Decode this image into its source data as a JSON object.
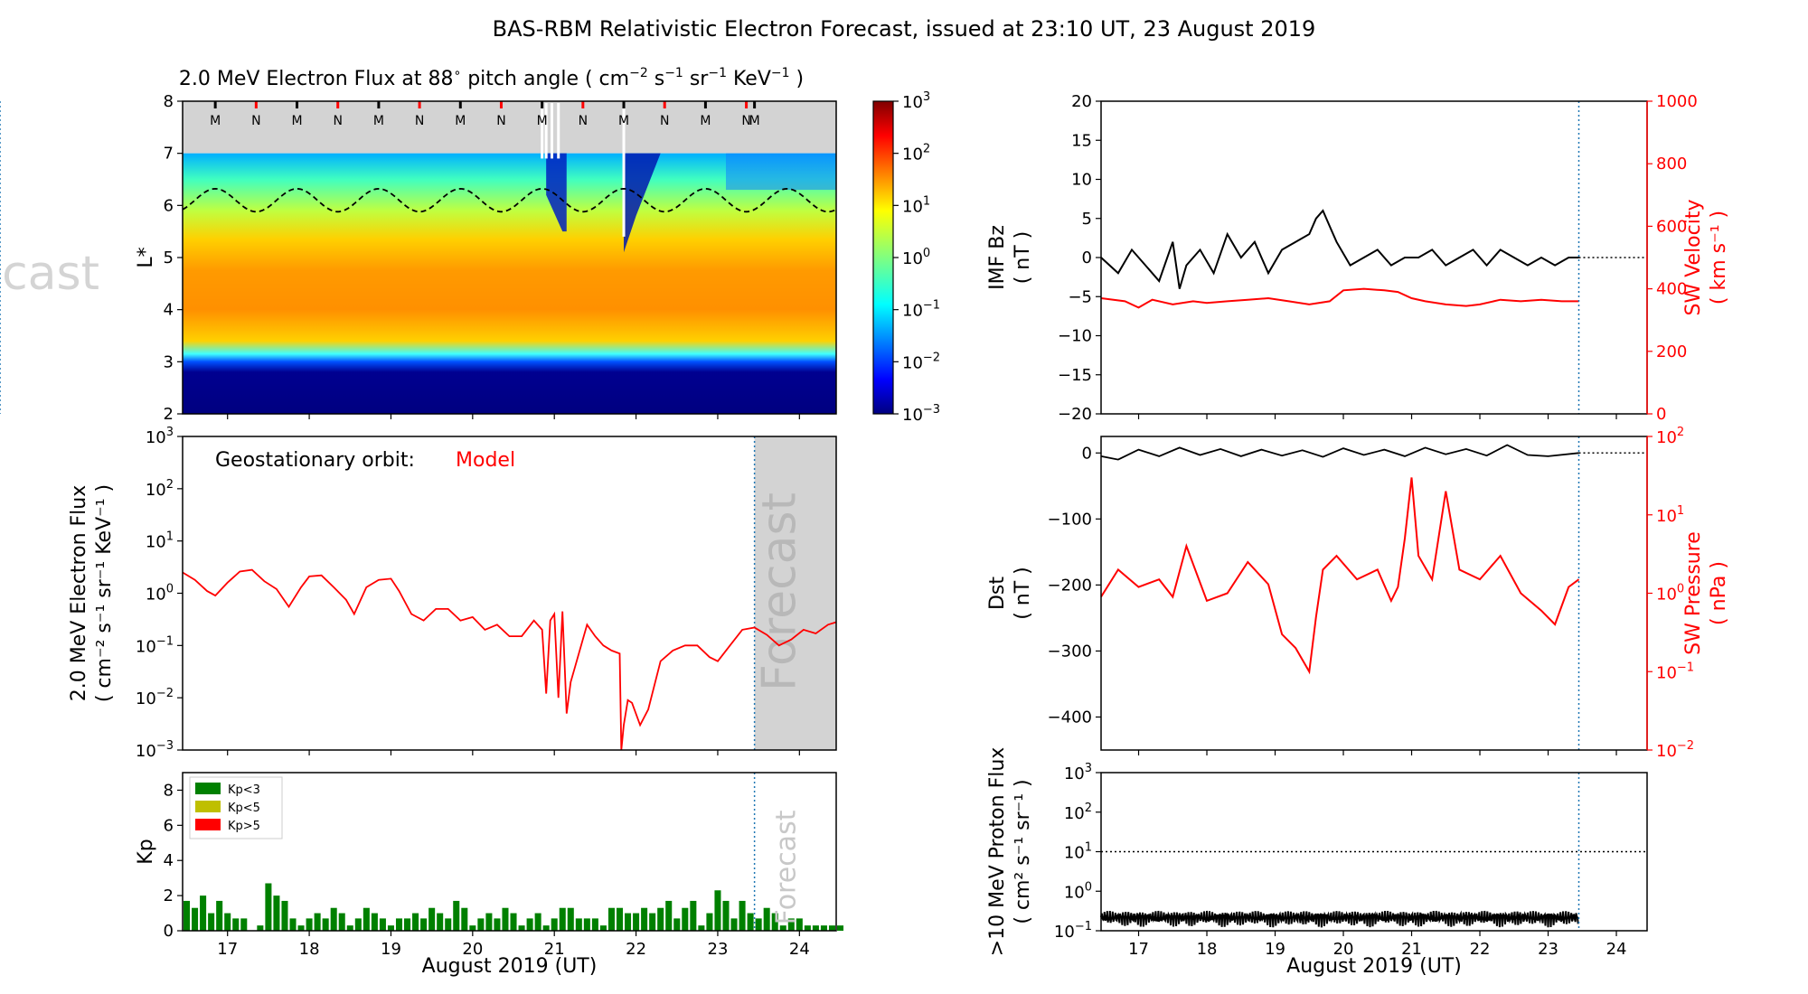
{
  "title": "BAS-RBM Relativistic Electron Forecast, issued at 23:10 UT, 23 August 2019",
  "colors": {
    "model": "#ff0000",
    "kp_low": "#008000",
    "kp_mid": "#bfbf00",
    "kp_high": "#ff0000",
    "forecast_line": "#1f77b4",
    "forecast_fill": "#d3d3d3"
  },
  "chart_data": [
    {
      "id": "flux_map",
      "type": "heatmap",
      "title": "2.0 MeV Electron Flux at 88$^\\circ$ pitch angle ( cm$^{-2}$ s$^{-1}$ sr$^{-1}$ KeV$^{-1}$ )",
      "title_parts": [
        "2.0 MeV Electron Flux at 88",
        "∘",
        " pitch angle ( cm",
        "−2",
        " s",
        "−1",
        " sr",
        "−1",
        " KeV",
        "−1",
        " )"
      ],
      "ylabel": "L*",
      "xlim": [
        16.45,
        24.45
      ],
      "ylim": [
        2,
        8
      ],
      "yticks": [
        "2",
        "3",
        "4",
        "5",
        "6",
        "7",
        "8"
      ],
      "colorbar": {
        "scale": "log",
        "range": [
          0.001,
          1000
        ],
        "ticks": [
          {
            "b": "10",
            "e": "−3"
          },
          {
            "b": "10",
            "e": "−2"
          },
          {
            "b": "10",
            "e": "−1"
          },
          {
            "b": "10",
            "e": "0"
          },
          {
            "b": "10",
            "e": "1"
          },
          {
            "b": "10",
            "e": "2"
          },
          {
            "b": "10",
            "e": "3"
          }
        ]
      },
      "markers": [
        {
          "x": 16.85,
          "label": "M"
        },
        {
          "x": 17.35,
          "label": "N"
        },
        {
          "x": 17.85,
          "label": "M"
        },
        {
          "x": 18.35,
          "label": "N"
        },
        {
          "x": 18.85,
          "label": "M"
        },
        {
          "x": 19.35,
          "label": "N"
        },
        {
          "x": 19.85,
          "label": "M"
        },
        {
          "x": 20.35,
          "label": "N"
        },
        {
          "x": 20.85,
          "label": "M"
        },
        {
          "x": 21.35,
          "label": "N"
        },
        {
          "x": 21.85,
          "label": "M"
        },
        {
          "x": 22.35,
          "label": "N"
        },
        {
          "x": 22.85,
          "label": "M"
        },
        {
          "x": 23.35,
          "label": "N"
        },
        {
          "x": 23.45,
          "label": "M"
        }
      ],
      "last_closed_drift_shell": {
        "mean": 6.1,
        "amplitude": 0.22,
        "period_days": 1
      },
      "forecast_label": "Forecast"
    },
    {
      "id": "geo_flux",
      "type": "line",
      "ylabel_lines": [
        "2.0 MeV Electron Flux",
        "( cm⁻² s⁻¹ sr⁻¹ KeV⁻¹ )"
      ],
      "annotation": "Geostationary orbit:",
      "series": [
        {
          "name": "Model",
          "color": "#ff0000",
          "x": [
            16.45,
            16.6,
            16.75,
            16.85,
            17.0,
            17.15,
            17.3,
            17.45,
            17.6,
            17.75,
            17.9,
            18.0,
            18.15,
            18.3,
            18.45,
            18.55,
            18.7,
            18.85,
            19.0,
            19.1,
            19.25,
            19.4,
            19.55,
            19.7,
            19.85,
            20.0,
            20.15,
            20.3,
            20.45,
            20.6,
            20.75,
            20.85,
            20.9,
            20.95,
            21.0,
            21.05,
            21.1,
            21.15,
            21.2,
            21.3,
            21.4,
            21.5,
            21.6,
            21.7,
            21.8,
            21.82,
            21.85,
            21.9,
            21.95,
            22.05,
            22.15,
            22.3,
            22.45,
            22.6,
            22.75,
            22.9,
            23.0,
            23.15,
            23.3,
            23.45,
            23.6,
            23.75,
            23.9,
            24.05,
            24.2,
            24.35,
            24.45
          ],
          "y": [
            2.5,
            1.8,
            1.1,
            0.9,
            1.6,
            2.6,
            2.8,
            1.7,
            1.2,
            0.55,
            1.3,
            2.1,
            2.2,
            1.3,
            0.75,
            0.4,
            1.3,
            1.8,
            1.9,
            1.1,
            0.4,
            0.3,
            0.5,
            0.5,
            0.3,
            0.35,
            0.2,
            0.25,
            0.15,
            0.15,
            0.3,
            0.2,
            0.012,
            0.3,
            0.4,
            0.01,
            0.45,
            0.005,
            0.02,
            0.07,
            0.25,
            0.15,
            0.1,
            0.08,
            0.07,
            0.001,
            0.003,
            0.009,
            0.008,
            0.003,
            0.006,
            0.05,
            0.08,
            0.1,
            0.1,
            0.06,
            0.05,
            0.1,
            0.2,
            0.22,
            0.16,
            0.1,
            0.13,
            0.2,
            0.17,
            0.25,
            0.28
          ]
        }
      ],
      "xlim": [
        16.45,
        24.45
      ],
      "ylim": [
        0.001,
        1000
      ],
      "yscale": "log",
      "yticks": [
        {
          "b": "10",
          "e": "−3"
        },
        {
          "b": "10",
          "e": "−2"
        },
        {
          "b": "10",
          "e": "−1"
        },
        {
          "b": "10",
          "e": "0"
        },
        {
          "b": "10",
          "e": "1"
        },
        {
          "b": "10",
          "e": "2"
        },
        {
          "b": "10",
          "e": "3"
        }
      ],
      "forecast_start": 23.45,
      "forecast_label": "Forecast"
    },
    {
      "id": "kp",
      "type": "bar",
      "ylabel": "Kp",
      "xlabel": "August 2019 (UT)",
      "xlim": [
        16.45,
        24.45
      ],
      "ylim": [
        0,
        9
      ],
      "yticks": [
        "0",
        "2",
        "4",
        "6",
        "8"
      ],
      "xticks": [
        "17",
        "18",
        "19",
        "20",
        "21",
        "22",
        "23",
        "24"
      ],
      "legend": [
        "Kp<3",
        "Kp<5",
        "Kp>5"
      ],
      "bar_width_days": 0.1,
      "start": 16.45,
      "values": [
        1.7,
        1.3,
        2.0,
        1.0,
        1.7,
        1.0,
        0.7,
        0.7,
        0,
        0.3,
        2.7,
        2.0,
        1.7,
        0.7,
        0.3,
        0.7,
        1.0,
        0.7,
        1.3,
        1.0,
        0.3,
        0.7,
        1.3,
        1.0,
        0.7,
        0.3,
        0.7,
        0.7,
        1.0,
        0.7,
        1.3,
        1.0,
        0.7,
        1.7,
        1.3,
        0.3,
        0.7,
        1.0,
        0.7,
        1.3,
        1.0,
        0.3,
        0.7,
        1.0,
        0.3,
        0.7,
        1.3,
        1.3,
        0.7,
        0.7,
        0.7,
        0.3,
        1.3,
        1.3,
        1.0,
        1.0,
        1.3,
        1.0,
        1.3,
        1.7,
        0.7,
        1.3,
        1.7,
        0.3,
        1.0,
        2.3,
        1.7,
        0.7,
        1.7,
        1.0,
        0.7,
        1.3,
        1.0,
        0.3,
        0.7,
        0.7,
        0.3,
        0.3,
        0.3,
        0.3,
        0.3
      ],
      "forecast_start": 23.45,
      "forecast_label": "Forecast"
    },
    {
      "id": "imf_bz",
      "type": "line",
      "ylabel_lines": [
        "IMF Bz",
        "( nT )"
      ],
      "y2label_lines": [
        "SW Velocity",
        "( km s⁻¹ )"
      ],
      "xlim": [
        16.45,
        24.45
      ],
      "ylim": [
        -20,
        20
      ],
      "y2lim": [
        0,
        1000
      ],
      "yticks": [
        "−20",
        "−15",
        "−10",
        "−5",
        "0",
        "5",
        "10",
        "15",
        "20"
      ],
      "y2ticks": [
        "0",
        "200",
        "400",
        "600",
        "800",
        "1000"
      ],
      "series": [
        {
          "name": "IMF Bz",
          "color": "#000000",
          "x": [
            16.45,
            16.7,
            16.9,
            17.1,
            17.3,
            17.5,
            17.6,
            17.7,
            17.9,
            18.1,
            18.3,
            18.5,
            18.7,
            18.9,
            19.1,
            19.3,
            19.5,
            19.6,
            19.7,
            19.8,
            19.9,
            20.1,
            20.3,
            20.5,
            20.7,
            20.9,
            21.1,
            21.3,
            21.5,
            21.7,
            21.9,
            22.1,
            22.3,
            22.5,
            22.7,
            22.9,
            23.1,
            23.3,
            23.45
          ],
          "y": [
            0,
            -2,
            1,
            -1,
            -3,
            2,
            -4,
            -1,
            1,
            -2,
            3,
            0,
            2,
            -2,
            1,
            2,
            3,
            5,
            6,
            4,
            2,
            -1,
            0,
            1,
            -1,
            0,
            0,
            1,
            -1,
            0,
            1,
            -1,
            1,
            0,
            -1,
            0,
            -1,
            0,
            0
          ]
        },
        {
          "name": "SW Velocity",
          "color": "#ff0000",
          "x": [
            16.45,
            16.8,
            17.0,
            17.2,
            17.5,
            17.8,
            18.0,
            18.3,
            18.6,
            18.9,
            19.2,
            19.5,
            19.8,
            20.0,
            20.3,
            20.6,
            20.8,
            21.0,
            21.2,
            21.5,
            21.8,
            22.0,
            22.3,
            22.6,
            22.9,
            23.2,
            23.45
          ],
          "y": [
            370,
            360,
            340,
            365,
            350,
            360,
            355,
            360,
            365,
            370,
            360,
            350,
            360,
            395,
            400,
            395,
            390,
            370,
            360,
            350,
            345,
            350,
            365,
            360,
            365,
            360,
            360
          ]
        }
      ],
      "forecast_start": 23.45
    },
    {
      "id": "dst",
      "type": "line",
      "ylabel_lines": [
        "Dst",
        "( nT )"
      ],
      "y2label_lines": [
        "SW Pressure",
        "( nPa )"
      ],
      "xlim": [
        16.45,
        24.45
      ],
      "ylim": [
        -450,
        25
      ],
      "y2lim": [
        0.01,
        100
      ],
      "y2scale": "log",
      "yticks": [
        "−400",
        "−300",
        "−200",
        "−100",
        "0"
      ],
      "y2ticks": [
        {
          "b": "10",
          "e": "−2"
        },
        {
          "b": "10",
          "e": "−1"
        },
        {
          "b": "10",
          "e": "0"
        },
        {
          "b": "10",
          "e": "1"
        },
        {
          "b": "10",
          "e": "2"
        }
      ],
      "series": [
        {
          "name": "Dst",
          "color": "#000000",
          "x": [
            16.45,
            16.7,
            17.0,
            17.3,
            17.6,
            17.9,
            18.2,
            18.5,
            18.8,
            19.1,
            19.4,
            19.7,
            20.0,
            20.3,
            20.6,
            20.9,
            21.2,
            21.5,
            21.8,
            22.1,
            22.4,
            22.7,
            23.0,
            23.45
          ],
          "y": [
            -5,
            -10,
            5,
            -5,
            8,
            -3,
            6,
            -5,
            5,
            -4,
            4,
            -6,
            7,
            -3,
            5,
            -5,
            8,
            -2,
            6,
            -4,
            12,
            -3,
            -5,
            0
          ]
        },
        {
          "name": "SW Pressure",
          "color": "#ff0000",
          "x": [
            16.45,
            16.7,
            17.0,
            17.3,
            17.5,
            17.7,
            18.0,
            18.3,
            18.6,
            18.9,
            19.1,
            19.3,
            19.5,
            19.6,
            19.7,
            19.9,
            20.2,
            20.5,
            20.7,
            20.8,
            20.9,
            21.0,
            21.1,
            21.3,
            21.5,
            21.7,
            22.0,
            22.3,
            22.6,
            22.9,
            23.1,
            23.3,
            23.45
          ],
          "y": [
            0.9,
            2.0,
            1.2,
            1.5,
            0.9,
            4.0,
            0.8,
            1.0,
            2.5,
            1.3,
            0.3,
            0.2,
            0.1,
            0.5,
            2.0,
            3.0,
            1.5,
            2.0,
            0.8,
            1.2,
            5.0,
            30.0,
            3.0,
            1.5,
            20.0,
            2.0,
            1.5,
            3.0,
            1.0,
            0.6,
            0.4,
            1.2,
            1.5
          ]
        }
      ],
      "forecast_start": 23.45
    },
    {
      "id": "proton",
      "type": "line",
      "ylabel_lines": [
        ">10 MeV Proton Flux",
        "( cm² s⁻¹ sr⁻¹ )"
      ],
      "xlabel": "August 2019 (UT)",
      "xlim": [
        16.45,
        24.45
      ],
      "ylim": [
        0.1,
        1000
      ],
      "yscale": "log",
      "yticks": [
        {
          "b": "10",
          "e": "−1"
        },
        {
          "b": "10",
          "e": "0"
        },
        {
          "b": "10",
          "e": "1"
        },
        {
          "b": "10",
          "e": "2"
        },
        {
          "b": "10",
          "e": "3"
        }
      ],
      "xticks": [
        "17",
        "18",
        "19",
        "20",
        "21",
        "22",
        "23",
        "24"
      ],
      "threshold": 10,
      "series": [
        {
          "name": ">10 MeV Proton Flux",
          "color": "#000000",
          "x": [
            16.45,
            23.45
          ],
          "y": [
            0.22,
            0.22
          ]
        }
      ],
      "forecast_start": 23.45
    }
  ]
}
